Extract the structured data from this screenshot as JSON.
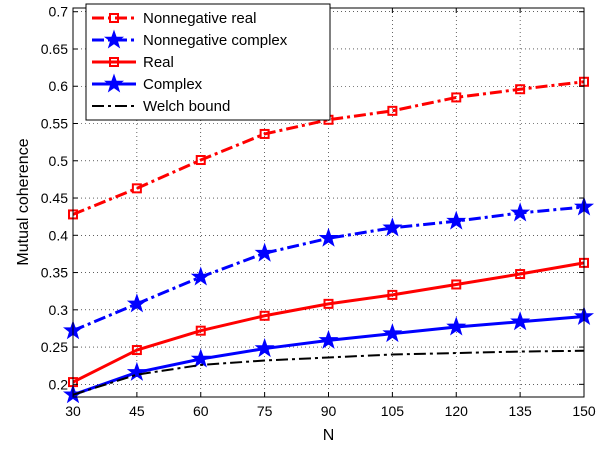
{
  "chart_data": {
    "type": "line",
    "title": "",
    "xlabel": "N",
    "ylabel": "Mutual coherence",
    "x": [
      30,
      45,
      60,
      75,
      90,
      105,
      120,
      135,
      150
    ],
    "xticks": [
      "30",
      "45",
      "60",
      "75",
      "90",
      "105",
      "120",
      "135",
      "150"
    ],
    "yticks": [
      "0.2",
      "0.25",
      "0.3",
      "0.35",
      "0.4",
      "0.45",
      "0.5",
      "0.55",
      "0.6",
      "0.65",
      "0.7"
    ],
    "xlim": [
      30,
      150
    ],
    "ylim": [
      0.183,
      0.705
    ],
    "grid": true,
    "legend_position": "top-left",
    "series": [
      {
        "name": "Nonnegative real",
        "color": "#ff0000",
        "line_style": "dash-dot",
        "marker": "square-open",
        "values": [
          0.428,
          0.463,
          0.501,
          0.536,
          0.555,
          0.567,
          0.585,
          0.596,
          0.606
        ]
      },
      {
        "name": "Nonnegative complex",
        "color": "#0000ff",
        "line_style": "dash-dot",
        "marker": "star",
        "values": [
          0.272,
          0.308,
          0.344,
          0.376,
          0.396,
          0.41,
          0.419,
          0.43,
          0.438
        ]
      },
      {
        "name": "Real",
        "color": "#ff0000",
        "line_style": "solid",
        "marker": "square-open",
        "values": [
          0.203,
          0.246,
          0.272,
          0.292,
          0.308,
          0.32,
          0.334,
          0.348,
          0.363
        ]
      },
      {
        "name": "Complex",
        "color": "#0000ff",
        "line_style": "solid",
        "marker": "star",
        "values": [
          0.186,
          0.216,
          0.234,
          0.248,
          0.259,
          0.268,
          0.277,
          0.284,
          0.291
        ]
      },
      {
        "name": "Welch bound",
        "color": "#000000",
        "line_style": "dash-dot",
        "marker": "none",
        "values": [
          0.186,
          0.213,
          0.226,
          0.232,
          0.236,
          0.24,
          0.242,
          0.244,
          0.245
        ]
      }
    ]
  }
}
